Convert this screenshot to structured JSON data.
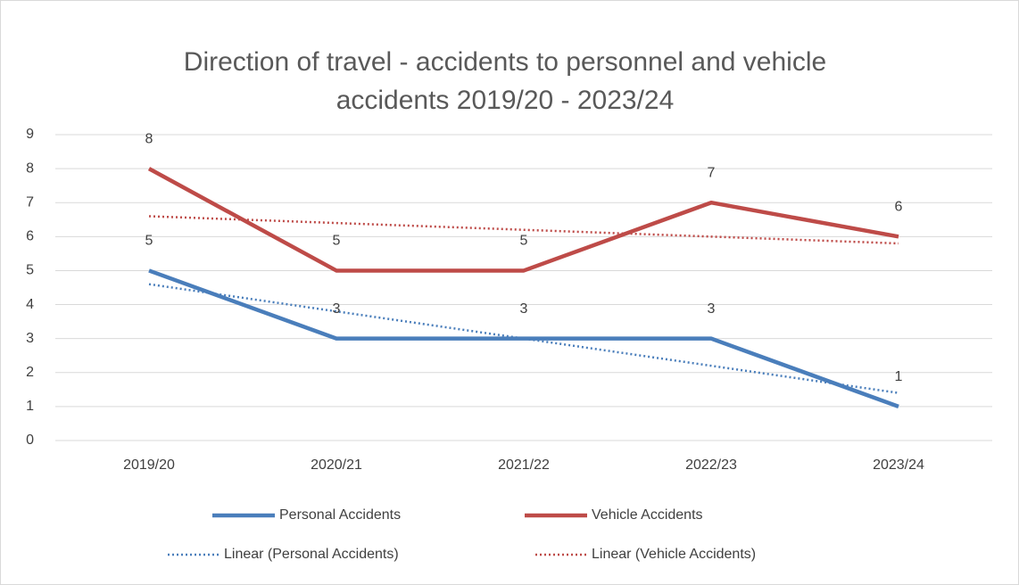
{
  "chart_data": {
    "type": "line",
    "title": [
      "Direction of travel - accidents to personnel and vehicle",
      "accidents  2019/20 - 2023/24"
    ],
    "categories": [
      "2019/20",
      "2020/21",
      "2021/22",
      "2022/23",
      "2023/24"
    ],
    "series": [
      {
        "name": "Personal Accidents",
        "color": "#4a7ebb",
        "line_style": "solid",
        "data_labels": true,
        "values": [
          5,
          3,
          3,
          3,
          1
        ]
      },
      {
        "name": "Vehicle Accidents",
        "color": "#be4b48",
        "line_style": "solid",
        "data_labels": true,
        "values": [
          8,
          5,
          5,
          7,
          6
        ]
      },
      {
        "name": "Linear (Personal Accidents)",
        "color": "#4a7ebb",
        "line_style": "dotted",
        "data_labels": false,
        "values": [
          4.6,
          3.8,
          3.0,
          2.2,
          1.4
        ]
      },
      {
        "name": "Linear (Vehicle Accidents)",
        "color": "#be4b48",
        "line_style": "dotted",
        "data_labels": false,
        "values": [
          6.6,
          6.4,
          6.2,
          6.0,
          5.8
        ]
      }
    ],
    "ylim": [
      0,
      9
    ],
    "yticks": [
      0,
      1,
      2,
      3,
      4,
      5,
      6,
      7,
      8,
      9
    ],
    "grid": true,
    "legend": "bottom"
  }
}
